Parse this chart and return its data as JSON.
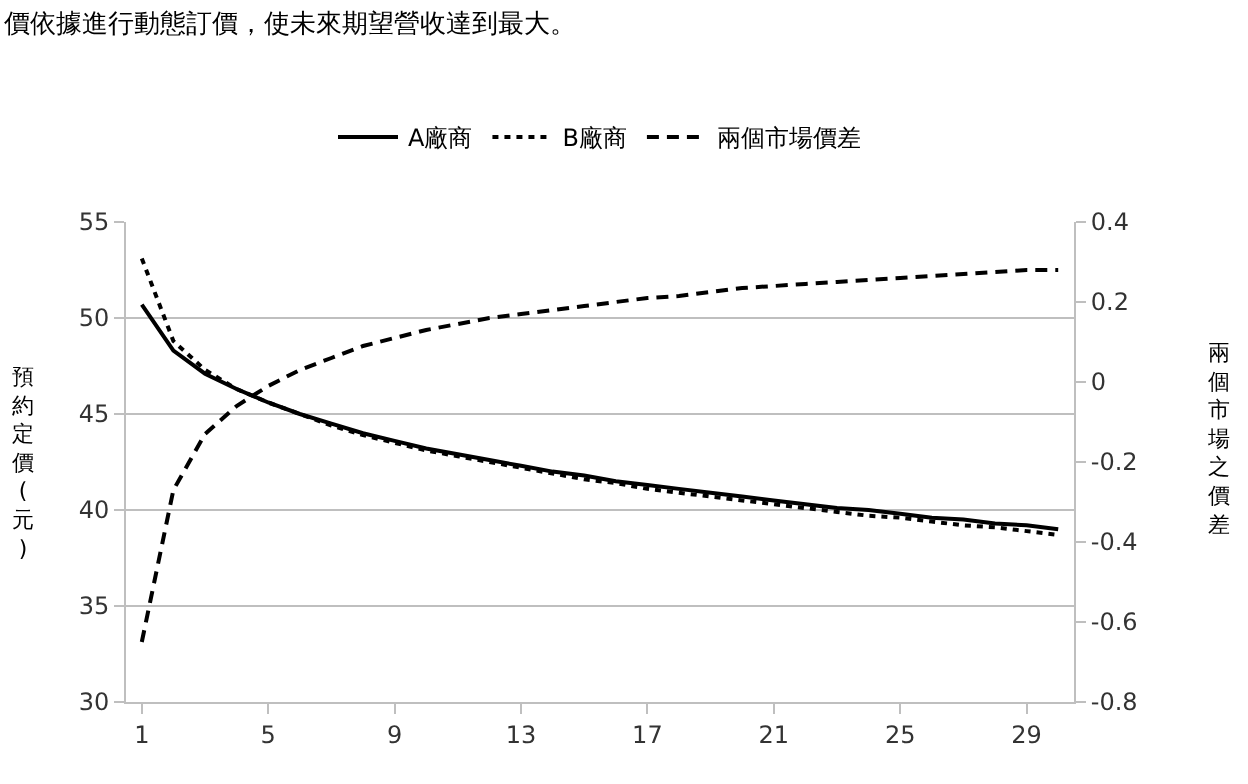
{
  "chart_data": {
    "type": "line",
    "annotations": [
      "價依據進行動態訂價，使未來期望營收達到最大。"
    ],
    "ylabel": "預約定價(元)",
    "y2label": "兩個市場之價差",
    "x": [
      1,
      2,
      3,
      4,
      5,
      6,
      7,
      8,
      9,
      10,
      11,
      12,
      13,
      14,
      15,
      16,
      17,
      18,
      19,
      20,
      21,
      22,
      23,
      24,
      25,
      26,
      27,
      28,
      29,
      30
    ],
    "xlim": [
      0.5,
      30.5
    ],
    "xticks": [
      1,
      5,
      9,
      13,
      17,
      21,
      25,
      29
    ],
    "ylim": [
      30,
      55
    ],
    "yticks": [
      30,
      35,
      40,
      45,
      50,
      55
    ],
    "y2lim": [
      -0.8,
      0.4
    ],
    "y2ticks": [
      -0.8,
      -0.6,
      -0.4,
      -0.2,
      0,
      0.2,
      0.4
    ],
    "grid": "y",
    "legend": "top",
    "marker": "none",
    "series": [
      {
        "name": "A廠商",
        "color": "#000000",
        "line_style": "solid",
        "values": [
          50.7,
          48.3,
          47.1,
          46.3,
          45.6,
          45.0,
          44.5,
          44.0,
          43.6,
          43.2,
          42.9,
          42.6,
          42.3,
          42.0,
          41.8,
          41.5,
          41.3,
          41.1,
          40.9,
          40.7,
          40.5,
          40.3,
          40.1,
          40.0,
          39.8,
          39.6,
          39.5,
          39.3,
          39.2,
          39.0
        ]
      },
      {
        "name": "B廠商",
        "color": "#000000",
        "line_style": "dotted",
        "values": [
          53.1,
          48.8,
          47.3,
          46.3,
          45.6,
          45.0,
          44.4,
          43.9,
          43.5,
          43.1,
          42.8,
          42.5,
          42.2,
          41.9,
          41.6,
          41.4,
          41.1,
          40.9,
          40.7,
          40.5,
          40.3,
          40.1,
          39.9,
          39.7,
          39.6,
          39.4,
          39.2,
          39.1,
          38.9,
          38.7
        ]
      },
      {
        "name": "兩個市場價差",
        "color": "#000000",
        "line_style": "dashed",
        "axis": "y2",
        "values": [
          -0.65,
          -0.27,
          -0.13,
          -0.06,
          -0.01,
          0.03,
          0.06,
          0.09,
          0.11,
          0.13,
          0.145,
          0.16,
          0.17,
          0.18,
          0.19,
          0.2,
          0.21,
          0.215,
          0.225,
          0.235,
          0.24,
          0.245,
          0.25,
          0.255,
          0.26,
          0.265,
          0.27,
          0.275,
          0.28,
          0.28
        ]
      }
    ]
  }
}
